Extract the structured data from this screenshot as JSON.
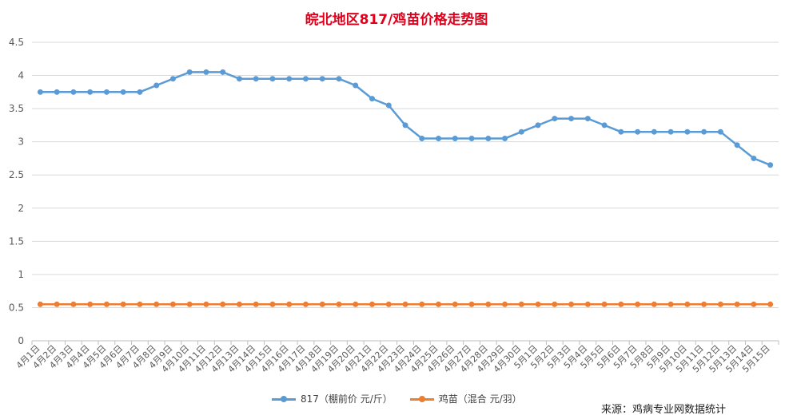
{
  "chart_data": {
    "type": "line",
    "title": "皖北地区817/鸡苗价格走势图",
    "xlabel": "",
    "ylabel": "",
    "ylim": [
      0,
      4.5
    ],
    "yticks": [
      "0",
      "0.5",
      "1",
      "1.5",
      "2",
      "2.5",
      "3",
      "3.5",
      "4",
      "4.5"
    ],
    "grid": true,
    "legend_position": "bottom",
    "categories": [
      "4月1日",
      "4月2日",
      "4月3日",
      "4月4日",
      "4月5日",
      "4月6日",
      "4月7日",
      "4月8日",
      "4月9日",
      "4月10日",
      "4月11日",
      "4月12日",
      "4月13日",
      "4月14日",
      "4月15日",
      "4月16日",
      "4月17日",
      "4月18日",
      "4月19日",
      "4月20日",
      "4月21日",
      "4月22日",
      "4月23日",
      "4月24日",
      "4月25日",
      "4月26日",
      "4月27日",
      "4月28日",
      "4月29日",
      "4月30日",
      "5月1日",
      "5月2日",
      "5月3日",
      "5月4日",
      "5月5日",
      "5月6日",
      "5月7日",
      "5月8日",
      "5月9日",
      "5月10日",
      "5月11日",
      "5月12日",
      "5月13日",
      "5月14日",
      "5月15日"
    ],
    "series": [
      {
        "name": "817（棚前价 元/斤）",
        "color": "#5b9bd5",
        "values": [
          3.75,
          3.75,
          3.75,
          3.75,
          3.75,
          3.75,
          3.75,
          3.85,
          3.95,
          4.05,
          4.05,
          4.05,
          3.95,
          3.95,
          3.95,
          3.95,
          3.95,
          3.95,
          3.95,
          3.85,
          3.65,
          3.55,
          3.25,
          3.05,
          3.05,
          3.05,
          3.05,
          3.05,
          3.05,
          3.15,
          3.25,
          3.35,
          3.35,
          3.35,
          3.25,
          3.15,
          3.15,
          3.15,
          3.15,
          3.15,
          3.15,
          3.15,
          2.95,
          2.75,
          2.65
        ]
      },
      {
        "name": "鸡苗（混合 元/羽）",
        "color": "#ed7d31",
        "values": [
          0.55,
          0.55,
          0.55,
          0.55,
          0.55,
          0.55,
          0.55,
          0.55,
          0.55,
          0.55,
          0.55,
          0.55,
          0.55,
          0.55,
          0.55,
          0.55,
          0.55,
          0.55,
          0.55,
          0.55,
          0.55,
          0.55,
          0.55,
          0.55,
          0.55,
          0.55,
          0.55,
          0.55,
          0.55,
          0.55,
          0.55,
          0.55,
          0.55,
          0.55,
          0.55,
          0.55,
          0.55,
          0.55,
          0.55,
          0.55,
          0.55,
          0.55,
          0.55,
          0.55,
          0.55
        ]
      }
    ],
    "source_note": "来源：鸡病专业网数据统计"
  }
}
